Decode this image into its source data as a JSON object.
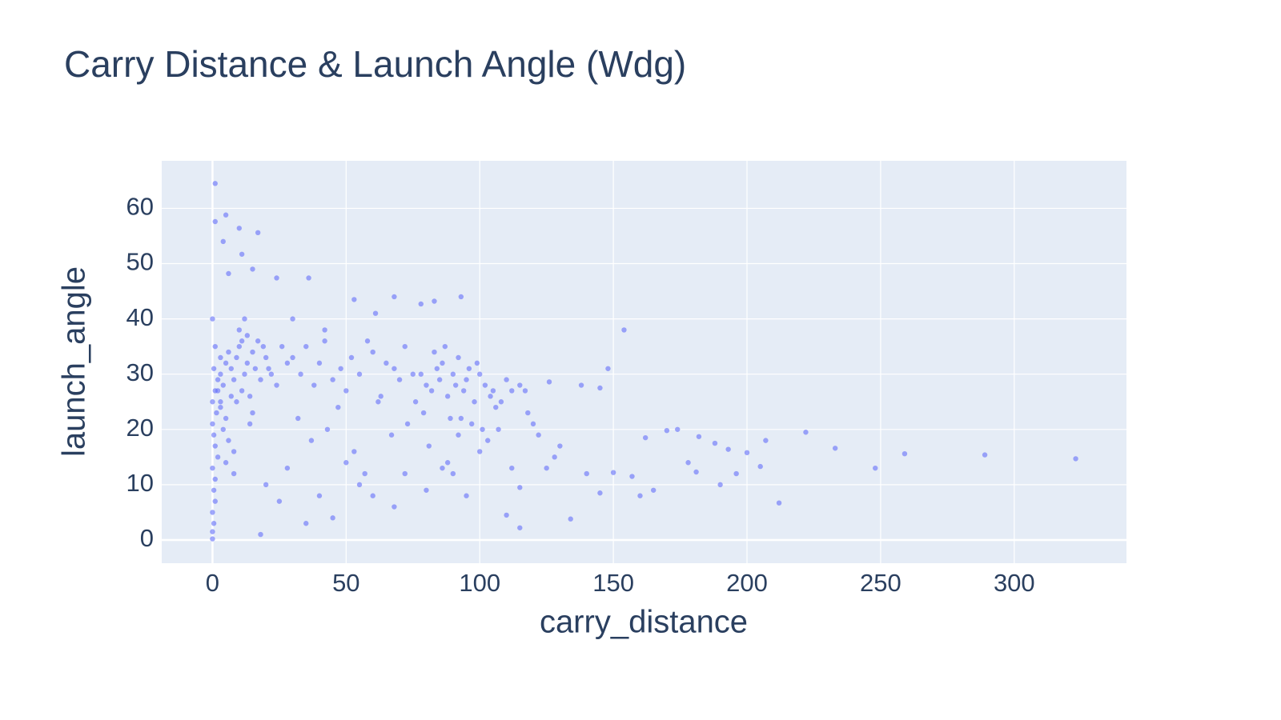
{
  "chart_data": {
    "type": "scatter",
    "title": "Carry Distance & Launch Angle (Wdg)",
    "x_label": "carry_distance",
    "y_label": "launch_angle",
    "xlim": [
      -19,
      342
    ],
    "ylim": [
      -4.2,
      68.6
    ],
    "xticks": [
      0,
      50,
      100,
      150,
      200,
      250,
      300
    ],
    "yticks": [
      0,
      10,
      20,
      30,
      40,
      50,
      60
    ],
    "grid": true,
    "opacity": 0.6,
    "series": [
      {
        "color": "#636efa",
        "x": [
          323,
          289,
          259,
          248,
          233,
          222,
          212,
          207,
          205,
          200,
          196,
          193,
          190,
          188,
          182,
          181,
          178,
          174,
          170,
          165,
          160,
          162,
          157,
          154,
          150,
          148,
          145,
          145,
          138,
          134,
          126,
          115,
          110,
          115,
          120,
          130,
          140,
          1,
          1,
          5,
          4,
          10,
          17,
          11,
          6,
          15,
          24,
          36,
          68,
          93,
          53,
          78,
          83,
          61,
          0,
          0,
          0.5,
          0,
          1,
          0.5,
          1,
          0,
          2,
          1,
          0.5,
          0,
          1.5,
          0,
          1,
          2,
          0.5,
          3,
          1,
          0,
          3,
          4,
          5,
          6,
          7,
          8,
          9,
          10,
          11,
          12,
          13,
          14,
          15,
          16,
          18,
          20,
          22,
          24,
          26,
          28,
          3,
          5,
          7,
          9,
          11,
          13,
          15,
          17,
          19,
          21,
          4,
          6,
          8,
          10,
          12,
          14,
          2,
          3,
          5,
          8,
          30,
          33,
          35,
          38,
          40,
          42,
          45,
          48,
          50,
          52,
          55,
          58,
          60,
          62,
          65,
          68,
          70,
          72,
          75,
          32,
          37,
          43,
          47,
          53,
          57,
          63,
          67,
          73,
          45,
          55,
          35,
          40,
          25,
          28,
          50,
          60,
          20,
          18,
          30,
          42,
          78,
          80,
          82,
          84,
          85,
          86,
          88,
          90,
          91,
          92,
          94,
          95,
          96,
          98,
          100,
          102,
          104,
          106,
          79,
          83,
          87,
          89,
          93,
          97,
          99,
          101,
          105,
          108,
          110,
          112,
          76,
          81,
          86,
          90,
          95,
          100,
          103,
          88,
          92,
          80,
          115,
          118,
          122,
          125,
          128,
          107,
          112,
          117,
          68,
          72
        ],
        "y": [
          14.7,
          15.4,
          15.6,
          13,
          16.6,
          19.5,
          6.7,
          18,
          13.3,
          15.8,
          12,
          16.4,
          10,
          17.5,
          18.7,
          12.3,
          14,
          20,
          19.8,
          9,
          8,
          18.5,
          11.5,
          38,
          12.2,
          31,
          27.5,
          8.5,
          28,
          3.8,
          28.6,
          2.2,
          4.5,
          9.5,
          21,
          17,
          12,
          64.5,
          57.6,
          58.8,
          54,
          56.4,
          55.6,
          51.7,
          48.2,
          49,
          47.4,
          47.4,
          44,
          44,
          43.5,
          42.7,
          43.2,
          41,
          0.2,
          1.5,
          3,
          5,
          7,
          9,
          11,
          13,
          15,
          17,
          19,
          21,
          23,
          25,
          27,
          29,
          31,
          33,
          35,
          40,
          30,
          28,
          32,
          34,
          31,
          29,
          33,
          35,
          27,
          30,
          32,
          26,
          34,
          31,
          29,
          33,
          30,
          28,
          35,
          32,
          24,
          22,
          26,
          25,
          36,
          37,
          23,
          36,
          35,
          31,
          20,
          18,
          16,
          38,
          40,
          21,
          27,
          25,
          14,
          12,
          33,
          30,
          35,
          28,
          32,
          38,
          29,
          31,
          27,
          33,
          30,
          36,
          34,
          25,
          32,
          31,
          29,
          35,
          30,
          22,
          18,
          20,
          24,
          16,
          12,
          26,
          19,
          21,
          4,
          10,
          3,
          8,
          7,
          13,
          14,
          8,
          10,
          1,
          40,
          36,
          30,
          28,
          27,
          31,
          29,
          32,
          26,
          30,
          28,
          33,
          27,
          29,
          31,
          25,
          30,
          28,
          26,
          24,
          23,
          34,
          35,
          22,
          22,
          21,
          32,
          20,
          27,
          25,
          29,
          27,
          25,
          17,
          13,
          12,
          8,
          16,
          18,
          14,
          19,
          9,
          28,
          23,
          19,
          13,
          15,
          20,
          13,
          27,
          6,
          12
        ]
      }
    ]
  }
}
